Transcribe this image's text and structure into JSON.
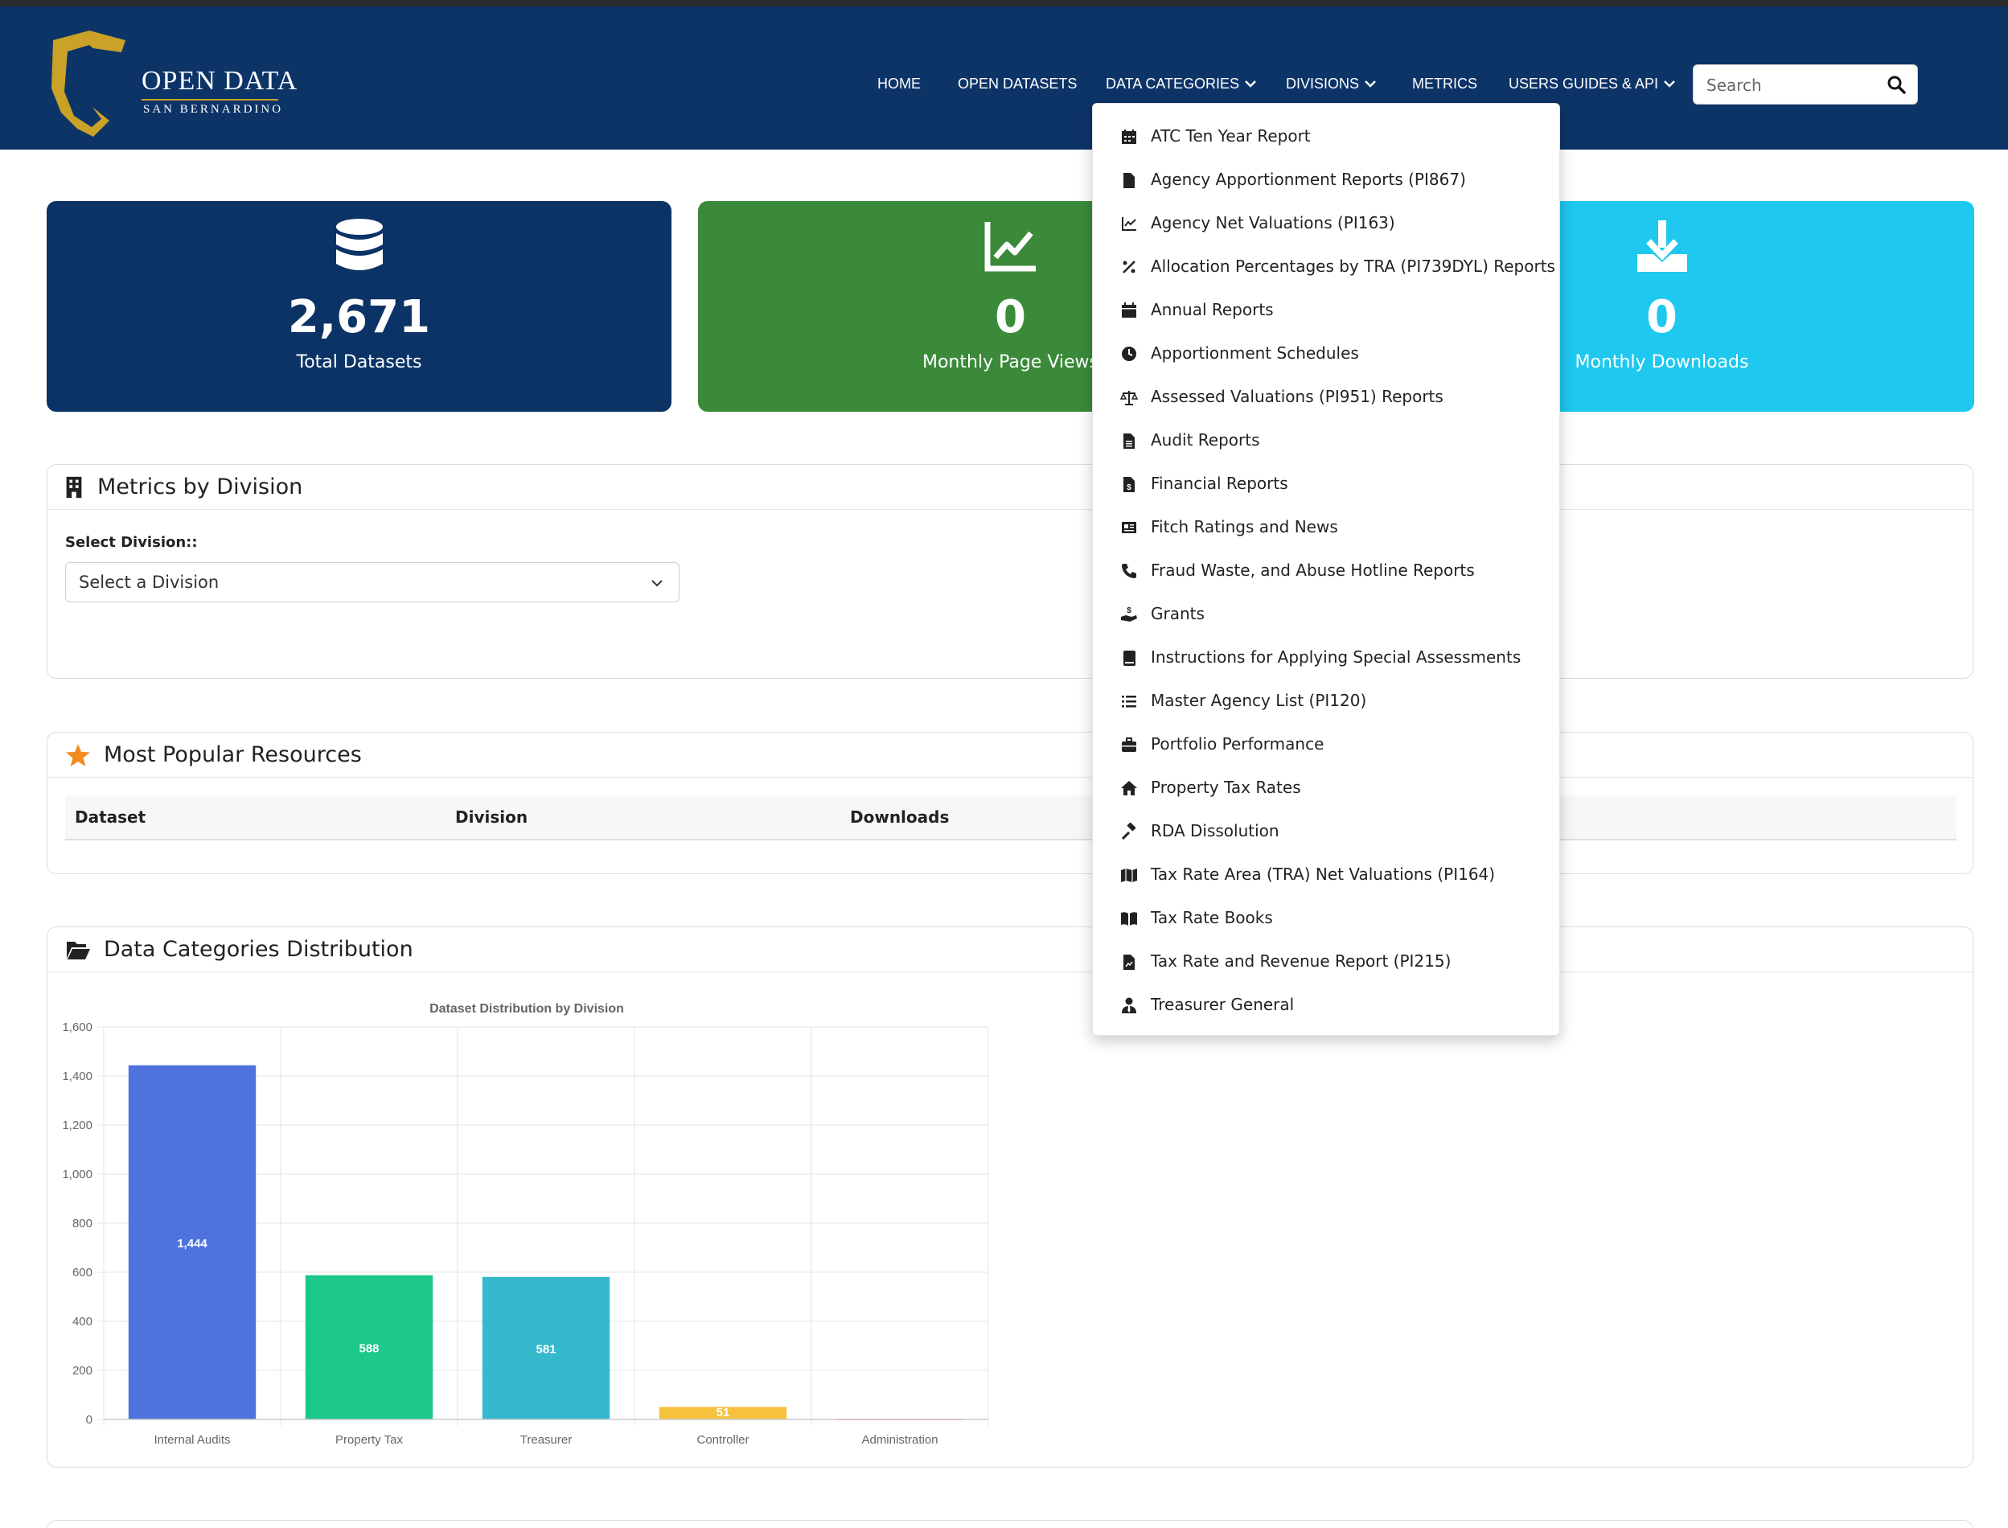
{
  "header": {
    "logo_title": "OPEN DATA",
    "logo_subtitle": "SAN BERNARDINO",
    "nav": {
      "home": "HOME",
      "open_datasets": "OPEN DATASETS",
      "data_categories": "DATA CATEGORIES",
      "divisions": "DIVISIONS",
      "metrics": "METRICS",
      "users_guides": "USERS GUIDES & API"
    },
    "search_placeholder": "Search",
    "colors": {
      "header_bg": "#0d3467",
      "logo_gold": "#c9a227"
    }
  },
  "stats": [
    {
      "value": "2,671",
      "label": "Total Datasets",
      "icon": "database-icon",
      "color": "#0b3366"
    },
    {
      "value": "0",
      "label": "Monthly Page Views",
      "icon": "chart-line-icon",
      "color": "#3a8a3a"
    },
    {
      "value": "0",
      "label": "Monthly Downloads",
      "icon": "download-icon",
      "color": "#1ec8ee"
    }
  ],
  "metrics_panel": {
    "title": "Metrics by Division",
    "field_label": "Select Division::",
    "select_value": "Select a Division"
  },
  "popular_panel": {
    "title": "Most Popular Resources",
    "columns": [
      "Dataset",
      "Division",
      "Downloads"
    ]
  },
  "categories_panel": {
    "title": "Data Categories Distribution"
  },
  "chart_data": {
    "type": "bar",
    "title": "Dataset Distribution by Division",
    "categories": [
      "Internal Audits",
      "Property Tax",
      "Treasurer",
      "Controller",
      "Administration"
    ],
    "values": [
      1444,
      588,
      581,
      51,
      2
    ],
    "data_labels": [
      "1,444",
      "588",
      "581",
      "51",
      ""
    ],
    "colors": [
      "#4e73df",
      "#1cc88a",
      "#36b9cc",
      "#f6c23e",
      "#e74a3b"
    ],
    "ylim": [
      0,
      1600
    ],
    "yticks": [
      "0",
      "200",
      "400",
      "600",
      "800",
      "1,000",
      "1,200",
      "1,400",
      "1,600"
    ],
    "grid": true
  },
  "dropdown": {
    "items": [
      {
        "label": "ATC Ten Year Report",
        "icon": "calendar-grid-icon"
      },
      {
        "label": "Agency Apportionment Reports (PI867)",
        "icon": "file-icon"
      },
      {
        "label": "Agency Net Valuations (PI163)",
        "icon": "chart-line-icon"
      },
      {
        "label": "Allocation Percentages by TRA (PI739DYL) Reports",
        "icon": "percent-icon"
      },
      {
        "label": "Annual Reports",
        "icon": "calendar-icon"
      },
      {
        "label": "Apportionment Schedules",
        "icon": "clock-icon"
      },
      {
        "label": "Assessed Valuations (PI951) Reports",
        "icon": "scale-icon"
      },
      {
        "label": "Audit Reports",
        "icon": "file-lines-icon"
      },
      {
        "label": "Financial Reports",
        "icon": "file-invoice-dollar-icon"
      },
      {
        "label": "Fitch Ratings and News",
        "icon": "newspaper-icon"
      },
      {
        "label": "Fraud Waste, and Abuse Hotline Reports",
        "icon": "phone-icon"
      },
      {
        "label": "Grants",
        "icon": "hand-holding-dollar-icon"
      },
      {
        "label": "Instructions for Applying Special Assessments",
        "icon": "book-icon"
      },
      {
        "label": "Master Agency List (PI120)",
        "icon": "list-icon"
      },
      {
        "label": "Portfolio Performance",
        "icon": "briefcase-icon"
      },
      {
        "label": "Property Tax Rates",
        "icon": "home-icon"
      },
      {
        "label": "RDA Dissolution",
        "icon": "gavel-icon"
      },
      {
        "label": "Tax Rate Area (TRA) Net Valuations (PI164)",
        "icon": "map-icon"
      },
      {
        "label": "Tax Rate Books",
        "icon": "book-open-icon"
      },
      {
        "label": "Tax Rate and Revenue Report (PI215)",
        "icon": "file-chart-icon"
      },
      {
        "label": "Treasurer General",
        "icon": "user-tie-icon"
      }
    ]
  }
}
